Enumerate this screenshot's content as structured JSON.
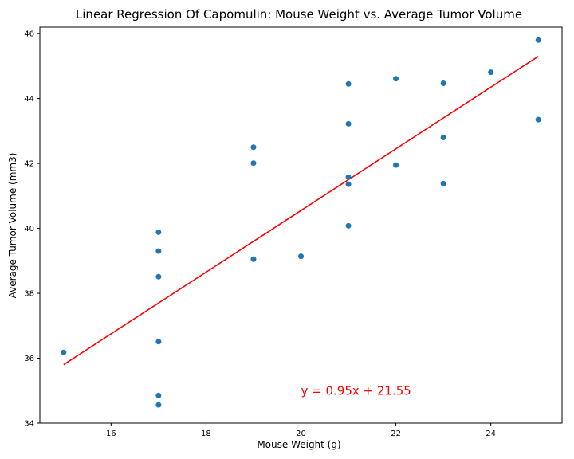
{
  "chart_data": {
    "type": "scatter",
    "title": "Linear Regression Of Capomulin: Mouse Weight vs. Average Tumor Volume",
    "xlabel": "Mouse Weight (g)",
    "ylabel": "Average Tumor Volume (mm3)",
    "xlim": [
      14.5,
      25.5
    ],
    "ylim": [
      34,
      46.2
    ],
    "xticks": [
      16,
      18,
      20,
      22,
      24
    ],
    "yticks": [
      34,
      36,
      38,
      40,
      42,
      44,
      46
    ],
    "grid": false,
    "points": [
      {
        "x": 15,
        "y": 36.18
      },
      {
        "x": 17,
        "y": 39.88
      },
      {
        "x": 17,
        "y": 39.3
      },
      {
        "x": 17,
        "y": 38.51
      },
      {
        "x": 17,
        "y": 36.51
      },
      {
        "x": 17,
        "y": 34.85
      },
      {
        "x": 17,
        "y": 34.56
      },
      {
        "x": 19,
        "y": 42.5
      },
      {
        "x": 19,
        "y": 42.01
      },
      {
        "x": 19,
        "y": 39.05
      },
      {
        "x": 20,
        "y": 39.14
      },
      {
        "x": 21,
        "y": 44.45
      },
      {
        "x": 21,
        "y": 43.22
      },
      {
        "x": 21,
        "y": 41.58
      },
      {
        "x": 21,
        "y": 41.36
      },
      {
        "x": 21,
        "y": 40.08
      },
      {
        "x": 22,
        "y": 44.61
      },
      {
        "x": 22,
        "y": 41.95
      },
      {
        "x": 23,
        "y": 44.47
      },
      {
        "x": 23,
        "y": 42.8
      },
      {
        "x": 23,
        "y": 41.38
      },
      {
        "x": 24,
        "y": 44.81
      },
      {
        "x": 25,
        "y": 45.8
      },
      {
        "x": 25,
        "y": 43.35
      }
    ],
    "regression": {
      "slope": 0.95,
      "intercept": 21.55,
      "x_range": [
        15,
        25
      ],
      "label": "y = 0.95x + 21.55",
      "label_x": 20,
      "label_y": 35.0
    },
    "colors": {
      "points": "#1f77b4",
      "line": "#ff0000",
      "annotation": "#ff0000",
      "axis": "#000000"
    }
  }
}
